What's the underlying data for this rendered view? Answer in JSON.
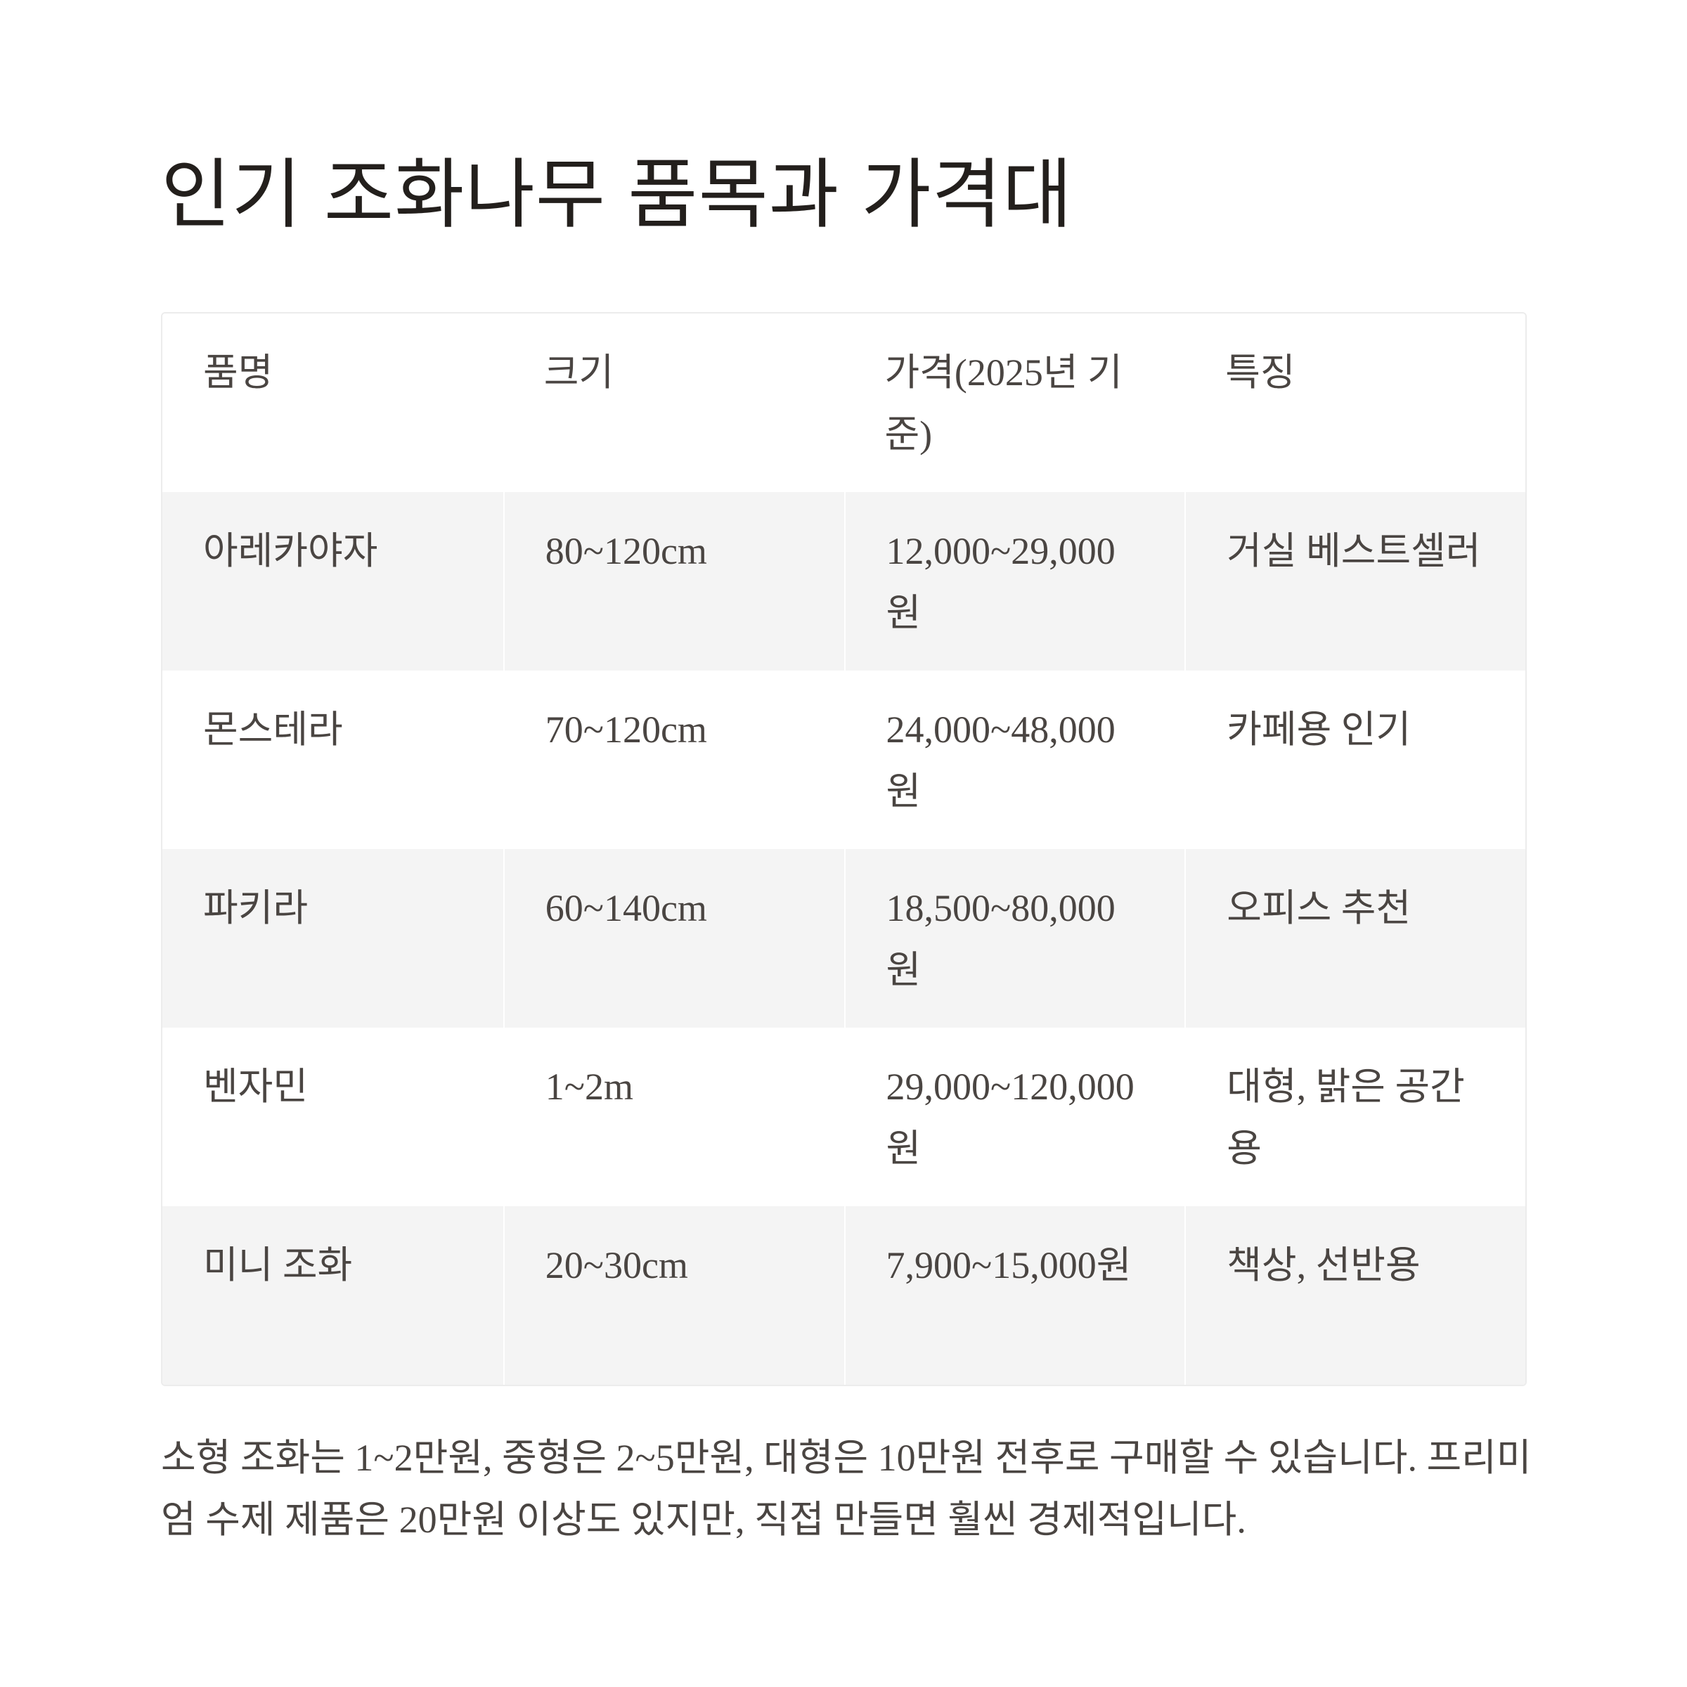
{
  "title": "인기 조화나무 품목과 가격대",
  "table": {
    "headers": [
      "품명",
      "크기",
      "가격(2025년 기준)",
      "특징"
    ],
    "rows": [
      [
        "아레카야자",
        "80~120cm",
        "12,000~29,000원",
        "거실 베스트셀러"
      ],
      [
        "몬스테라",
        "70~120cm",
        "24,000~48,000원",
        "카페용 인기"
      ],
      [
        "파키라",
        "60~140cm",
        "18,500~80,000원",
        "오피스 추천"
      ],
      [
        "벤자민",
        "1~2m",
        "29,000~120,000원",
        "대형, 밝은 공간용"
      ],
      [
        "미니 조화",
        "20~30cm",
        "7,900~15,000원",
        "책상, 선반용"
      ]
    ]
  },
  "note": "소형 조화는 1~2만원, 중형은 2~5만원, 대형은 10만원 전후로 구매할 수 있습니다. 프리미엄 수제 제품은 20만원 이상도 있지만, 직접 만들면 훨씬 경제적입니다."
}
